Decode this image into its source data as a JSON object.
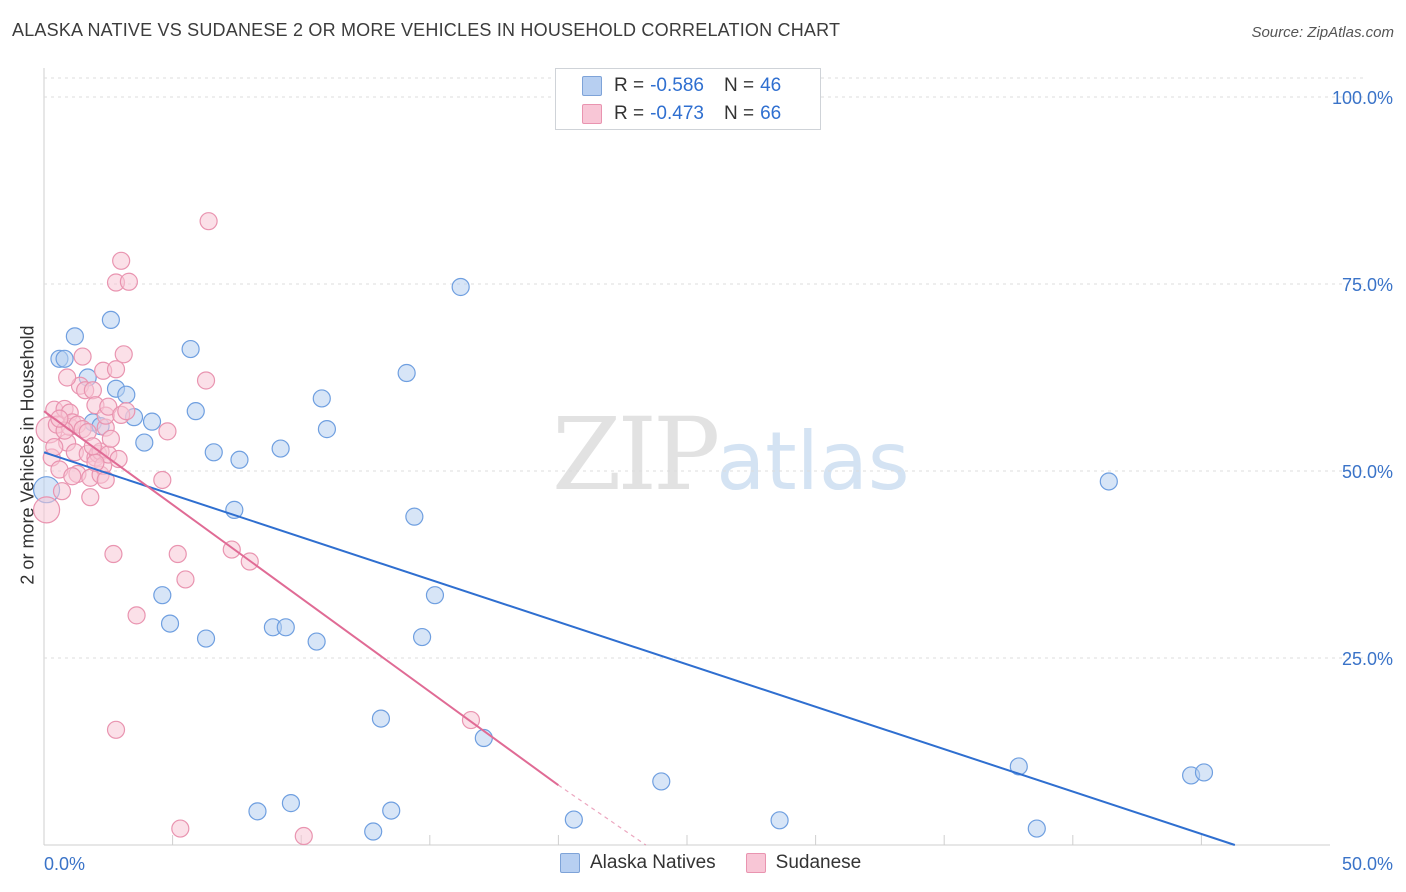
{
  "header": {
    "title": "ALASKA NATIVE VS SUDANESE 2 OR MORE VEHICLES IN HOUSEHOLD CORRELATION CHART",
    "source": "Source: ZipAtlas.com"
  },
  "legend": {
    "rows": [
      {
        "r_label": "R =",
        "r_value": "-0.586",
        "n_label": "N =",
        "n_value": "46",
        "color": "#b7cff1"
      },
      {
        "r_label": "R =",
        "r_value": "-0.473",
        "n_label": "N =",
        "n_value": "66",
        "color": "#f8c6d6"
      }
    ]
  },
  "watermark": {
    "zip": "ZIP",
    "atlas": "atlas"
  },
  "chart_data": {
    "type": "scatter",
    "title": "ALASKA NATIVE VS SUDANESE 2 OR MORE VEHICLES IN HOUSEHOLD CORRELATION CHART",
    "ylabel": "2 or more Vehicles in Household",
    "xlabel": "",
    "xlim": [
      0,
      50
    ],
    "ylim": [
      0,
      100
    ],
    "x_tick_labels": [
      "0.0%",
      "50.0%"
    ],
    "y_tick_labels": [
      "25.0%",
      "50.0%",
      "75.0%",
      "100.0%"
    ],
    "y_ticks": [
      25,
      50,
      75,
      100
    ],
    "grid": true,
    "legend_position": "top-center",
    "series": [
      {
        "name": "Alaska Natives",
        "color": "#6f9fe0",
        "fill": "#b7cff1",
        "line_color": "#2f6fd0",
        "r": -0.586,
        "n": 46,
        "trend": {
          "x0": 0,
          "y0": 52.5,
          "x1": 46.3,
          "y1": 0
        },
        "points": [
          [
            0.1,
            47.5
          ],
          [
            0.6,
            65
          ],
          [
            0.8,
            65
          ],
          [
            1.2,
            68
          ],
          [
            1.7,
            62.5
          ],
          [
            1.9,
            56.5
          ],
          [
            2.2,
            56
          ],
          [
            2.6,
            70.2
          ],
          [
            2.8,
            61
          ],
          [
            3.2,
            60.2
          ],
          [
            3.5,
            57.2
          ],
          [
            3.9,
            53.8
          ],
          [
            4.2,
            56.6
          ],
          [
            4.6,
            33.4
          ],
          [
            4.9,
            29.6
          ],
          [
            5.7,
            66.3
          ],
          [
            5.9,
            58
          ],
          [
            6.3,
            27.6
          ],
          [
            6.6,
            52.5
          ],
          [
            7.4,
            44.8
          ],
          [
            7.6,
            51.5
          ],
          [
            8.3,
            4.5
          ],
          [
            8.9,
            29.1
          ],
          [
            9.4,
            29.1
          ],
          [
            9.2,
            53
          ],
          [
            9.6,
            5.6
          ],
          [
            10.6,
            27.2
          ],
          [
            10.8,
            59.7
          ],
          [
            11.0,
            55.6
          ],
          [
            12.8,
            1.8
          ],
          [
            13.1,
            16.9
          ],
          [
            13.5,
            4.6
          ],
          [
            14.1,
            63.1
          ],
          [
            14.4,
            43.9
          ],
          [
            14.7,
            27.8
          ],
          [
            15.2,
            33.4
          ],
          [
            16.2,
            74.6
          ],
          [
            17.1,
            14.3
          ],
          [
            20.6,
            3.4
          ],
          [
            24.0,
            8.5
          ],
          [
            28.6,
            3.3
          ],
          [
            37.9,
            10.5
          ],
          [
            38.6,
            2.2
          ],
          [
            41.4,
            48.6
          ],
          [
            44.6,
            9.3
          ],
          [
            45.1,
            9.7
          ]
        ]
      },
      {
        "name": "Sudanese",
        "color": "#e994b0",
        "fill": "#f8c6d6",
        "line_color": "#e06b95",
        "r": -0.473,
        "n": 66,
        "trend": {
          "x0": 0,
          "y0": 58,
          "x1": 20.0,
          "y1": 8.0,
          "dash_to": {
            "x": 23.4,
            "y": 0
          }
        },
        "points": [
          [
            0.1,
            44.8
          ],
          [
            0.2,
            55.5
          ],
          [
            0.3,
            51.8
          ],
          [
            0.4,
            58.2
          ],
          [
            0.5,
            56.2
          ],
          [
            0.6,
            50.2
          ],
          [
            0.7,
            47.3
          ],
          [
            0.8,
            58.3
          ],
          [
            0.9,
            53.8
          ],
          [
            1.0,
            57.8
          ],
          [
            1.0,
            55.9
          ],
          [
            1.1,
            56.5
          ],
          [
            1.2,
            52.5
          ],
          [
            1.3,
            56.2
          ],
          [
            1.3,
            49.6
          ],
          [
            1.4,
            61.4
          ],
          [
            1.5,
            55.6
          ],
          [
            1.6,
            60.8
          ],
          [
            1.7,
            52.3
          ],
          [
            1.8,
            49.1
          ],
          [
            1.8,
            46.5
          ],
          [
            1.9,
            60.8
          ],
          [
            2.0,
            58.8
          ],
          [
            2.0,
            51.8
          ],
          [
            2.1,
            52.3
          ],
          [
            2.2,
            52.6
          ],
          [
            2.2,
            49.5
          ],
          [
            2.3,
            63.4
          ],
          [
            2.3,
            50.7
          ],
          [
            2.4,
            55.8
          ],
          [
            2.4,
            57.4
          ],
          [
            2.5,
            58.6
          ],
          [
            2.5,
            52.2
          ],
          [
            2.6,
            54.3
          ],
          [
            2.7,
            38.9
          ],
          [
            2.8,
            75.2
          ],
          [
            2.8,
            63.6
          ],
          [
            3.0,
            78.1
          ],
          [
            3.0,
            57.5
          ],
          [
            3.1,
            65.6
          ],
          [
            3.2,
            58.0
          ],
          [
            3.3,
            75.3
          ],
          [
            3.6,
            30.7
          ],
          [
            4.6,
            48.8
          ],
          [
            4.8,
            55.3
          ],
          [
            5.2,
            38.9
          ],
          [
            5.5,
            35.5
          ],
          [
            6.4,
            83.4
          ],
          [
            6.3,
            62.1
          ],
          [
            7.3,
            39.5
          ],
          [
            8.0,
            37.9
          ],
          [
            2.8,
            15.4
          ],
          [
            5.3,
            2.2
          ],
          [
            10.1,
            1.2
          ],
          [
            16.6,
            16.7
          ],
          [
            0.9,
            62.5
          ],
          [
            0.4,
            53.2
          ],
          [
            1.5,
            65.3
          ],
          [
            2.0,
            51.1
          ],
          [
            0.8,
            55.4
          ],
          [
            1.1,
            49.3
          ],
          [
            2.9,
            51.6
          ],
          [
            0.6,
            57.0
          ],
          [
            1.7,
            55.2
          ],
          [
            2.4,
            48.8
          ],
          [
            1.9,
            53.3
          ]
        ]
      }
    ]
  }
}
